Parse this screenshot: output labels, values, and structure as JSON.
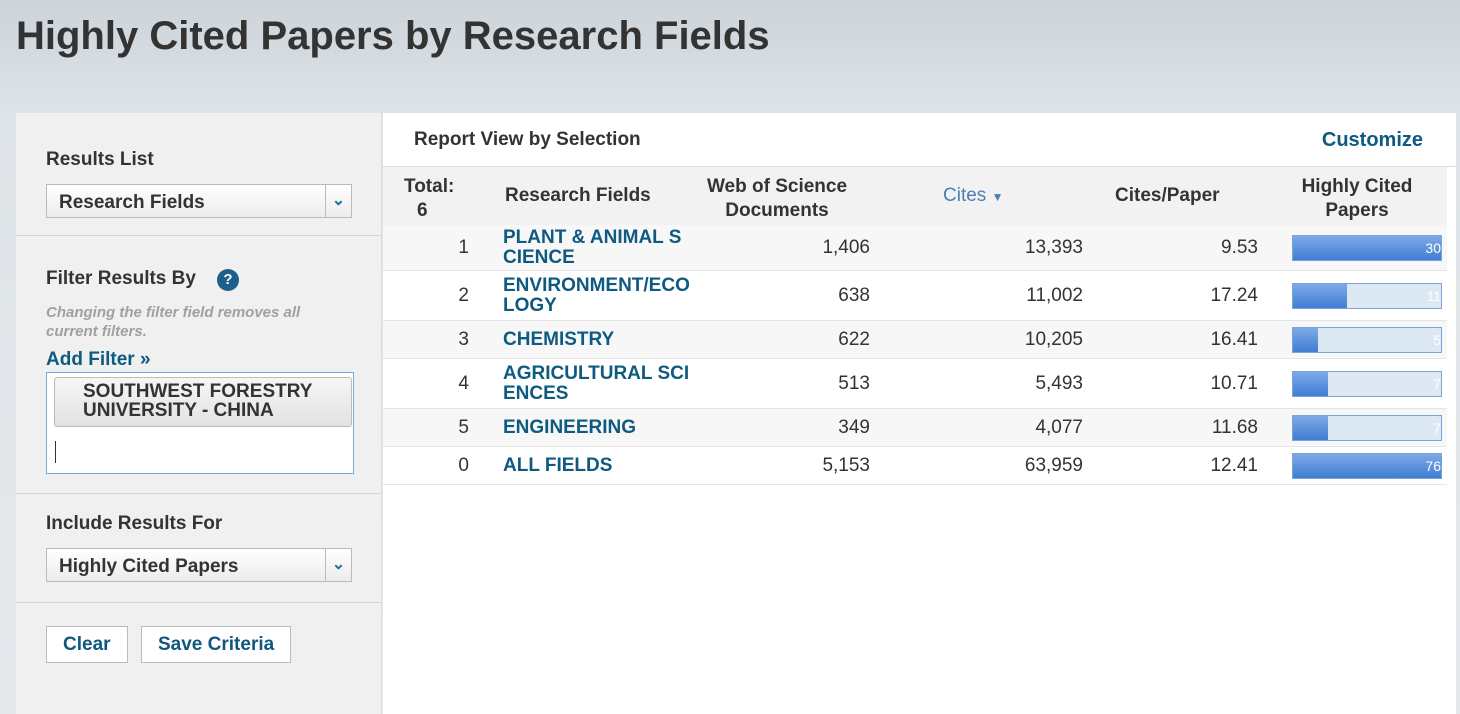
{
  "header": {
    "title": "Highly Cited Papers by Research Fields"
  },
  "sidebar": {
    "results_list": {
      "label": "Results List",
      "selected": "Research Fields"
    },
    "filter": {
      "label": "Filter Results By",
      "help": "?",
      "note": "Changing the filter field removes all current filters.",
      "add_filter": "Add Filter »",
      "tags": [
        "SOUTHWEST FORESTRY UNIVERSITY - CHINA"
      ]
    },
    "include": {
      "label": "Include Results For",
      "selected": "Highly Cited Papers"
    },
    "buttons": [
      "Clear",
      "Save Criteria"
    ]
  },
  "report": {
    "title": "Report View by Selection",
    "customize": "Customize",
    "table": {
      "headers": {
        "total_label": "Total:",
        "total": "6",
        "field": "Research Fields",
        "docs": "Web of Science Documents",
        "cites": "Cites",
        "cites_per_paper": "Cites/Paper",
        "highly_cited": "Highly Cited Papers"
      },
      "rows": [
        [
          "1",
          "PLANT & ANIMAL SCIENCE",
          "1,406",
          "13,393",
          "9.53",
          30
        ],
        [
          "2",
          "ENVIRONMENT/ECOLOGY",
          "638",
          "11,002",
          "17.24",
          11
        ],
        [
          "3",
          "CHEMISTRY",
          "622",
          "10,205",
          "16.41",
          5
        ],
        [
          "4",
          "AGRICULTURAL SCIENCES",
          "513",
          "5,493",
          "10.71",
          7
        ],
        [
          "5",
          "ENGINEERING",
          "349",
          "4,077",
          "11.68",
          7
        ]
      ],
      "total_row": [
        "0",
        "ALL FIELDS",
        "5,153",
        "63,959",
        "12.41",
        76
      ]
    }
  }
}
